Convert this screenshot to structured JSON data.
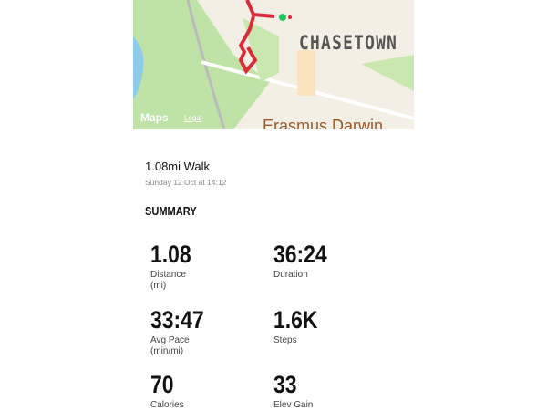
{
  "map": {
    "town_label": "CHASETOWN",
    "poi_label": "Erasmus Darwin",
    "brand": "Maps",
    "legal": "Legal",
    "route_color": "#d92b3a",
    "start_color": "#22c55e"
  },
  "workout": {
    "title": "1.08mi Walk",
    "date": "Sunday 12 Oct at 14:12"
  },
  "summary": {
    "heading": "SUMMARY",
    "metrics": [
      {
        "value": "1.08",
        "label": "Distance\n(mi)"
      },
      {
        "value": "36:24",
        "label": "Duration"
      },
      {
        "value": "33:47",
        "label": "Avg Pace\n(min/mi)"
      },
      {
        "value": "1.6K",
        "label": "Steps"
      },
      {
        "value": "70",
        "label": "Calories"
      },
      {
        "value": "33",
        "label": "Elev Gain"
      }
    ]
  }
}
